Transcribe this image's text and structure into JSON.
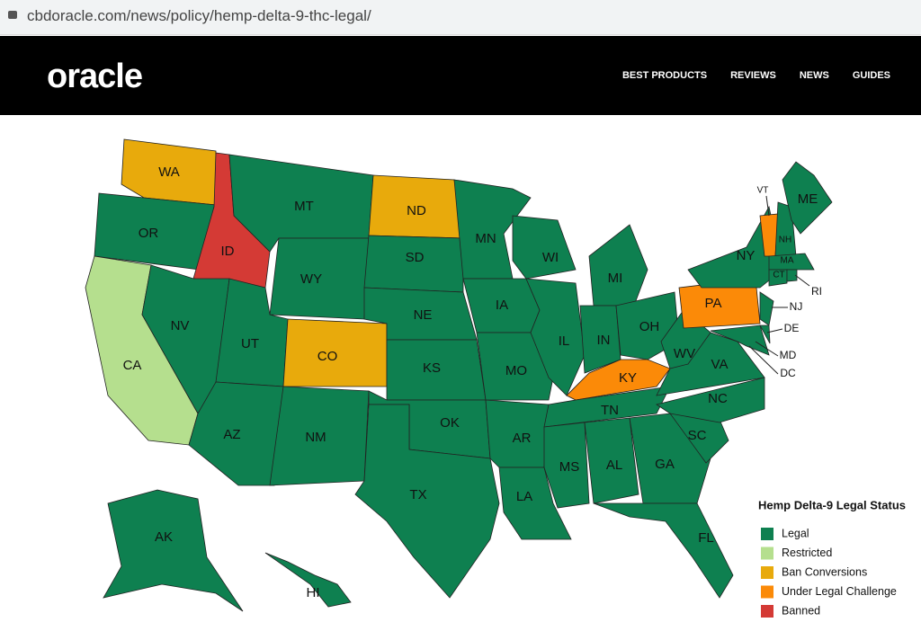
{
  "browser": {
    "url": "cbdoracle.com/news/policy/hemp-delta-9-thc-legal/"
  },
  "header": {
    "logo": "oracle",
    "nav": [
      "BEST PRODUCTS",
      "REVIEWS",
      "NEWS",
      "GUIDES"
    ]
  },
  "map": {
    "legend": {
      "title": "Hemp Delta-9 Legal Status",
      "items": [
        {
          "label": "Legal",
          "color": "#0e8050"
        },
        {
          "label": "Restricted",
          "color": "#b5df8e"
        },
        {
          "label": "Ban Conversions",
          "color": "#e8aa0c"
        },
        {
          "label": "Under Legal Challenge",
          "color": "#fb8a08"
        },
        {
          "label": "Banned",
          "color": "#d43a35"
        }
      ]
    },
    "states": [
      {
        "label": "WA",
        "status": 2
      },
      {
        "label": "OR",
        "status": 0
      },
      {
        "label": "CA",
        "status": 1
      },
      {
        "label": "ID",
        "status": 4
      },
      {
        "label": "NV",
        "status": 0
      },
      {
        "label": "MT",
        "status": 0
      },
      {
        "label": "WY",
        "status": 0
      },
      {
        "label": "UT",
        "status": 0
      },
      {
        "label": "AZ",
        "status": 0
      },
      {
        "label": "CO",
        "status": 2
      },
      {
        "label": "NM",
        "status": 0
      },
      {
        "label": "ND",
        "status": 2
      },
      {
        "label": "SD",
        "status": 0
      },
      {
        "label": "NE",
        "status": 0
      },
      {
        "label": "KS",
        "status": 0
      },
      {
        "label": "OK",
        "status": 0
      },
      {
        "label": "TX",
        "status": 0
      },
      {
        "label": "MN",
        "status": 0
      },
      {
        "label": "IA",
        "status": 0
      },
      {
        "label": "MO",
        "status": 0
      },
      {
        "label": "AR",
        "status": 0
      },
      {
        "label": "LA",
        "status": 0
      },
      {
        "label": "WI",
        "status": 0
      },
      {
        "label": "IL",
        "status": 0
      },
      {
        "label": "MI",
        "status": 0
      },
      {
        "label": "IN",
        "status": 0
      },
      {
        "label": "OH",
        "status": 0
      },
      {
        "label": "KY",
        "status": 3
      },
      {
        "label": "TN",
        "status": 0
      },
      {
        "label": "MS",
        "status": 0
      },
      {
        "label": "AL",
        "status": 0
      },
      {
        "label": "GA",
        "status": 0
      },
      {
        "label": "FL",
        "status": 0
      },
      {
        "label": "SC",
        "status": 0
      },
      {
        "label": "NC",
        "status": 0
      },
      {
        "label": "VA",
        "status": 0
      },
      {
        "label": "WV",
        "status": 0
      },
      {
        "label": "PA",
        "status": 3
      },
      {
        "label": "NY",
        "status": 0
      },
      {
        "label": "NJ",
        "status": 0
      },
      {
        "label": "DE",
        "status": 0
      },
      {
        "label": "MD",
        "status": 0
      },
      {
        "label": "DC",
        "status": 0
      },
      {
        "label": "VT",
        "status": 3
      },
      {
        "label": "NH",
        "status": 0
      },
      {
        "label": "ME",
        "status": 0
      },
      {
        "label": "MA",
        "status": 0
      },
      {
        "label": "CT",
        "status": 0
      },
      {
        "label": "RI",
        "status": 0
      },
      {
        "label": "AK",
        "status": 0
      },
      {
        "label": "HI",
        "status": 0
      }
    ]
  }
}
